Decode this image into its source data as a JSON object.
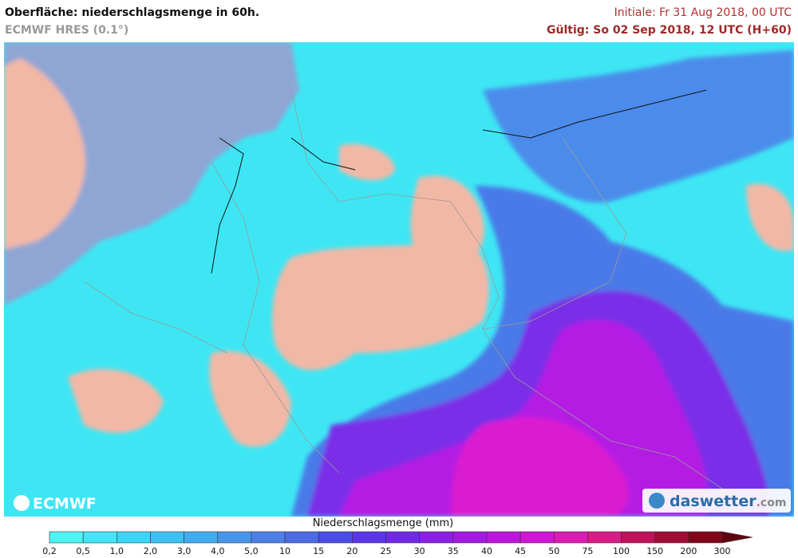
{
  "header": {
    "title": "Oberfläche: niederschlagsmenge in 60h.",
    "subtitle": "ECMWF HRES (0.1°)",
    "initial": "Initiale: Fr 31 Aug 2018, 00 UTC",
    "valid": "Gültig: So 02 Sep 2018, 12 UTC (H+60)"
  },
  "logos": {
    "left": "ECMWF",
    "right_name": "daswetter",
    "right_suffix": ".com"
  },
  "legend": {
    "title": "Niederschlagsmenge (mm)",
    "ticks": [
      "0,2",
      "0,5",
      "1,0",
      "2,0",
      "3,0",
      "4,0",
      "5,0",
      "10",
      "15",
      "20",
      "25",
      "30",
      "35",
      "40",
      "45",
      "50",
      "75",
      "100",
      "150",
      "200",
      "300"
    ],
    "colors": [
      "#4ef4f4",
      "#42e6f6",
      "#3ad6f6",
      "#3cc2f2",
      "#42acee",
      "#4896ea",
      "#4c80e6",
      "#4e6ae4",
      "#4a4ce8",
      "#5a36e8",
      "#7028e8",
      "#8a20e6",
      "#a41ae4",
      "#bc16de",
      "#d016d2",
      "#de1ab4",
      "#dc1a86",
      "#c0125a",
      "#a00c34",
      "#7e0818"
    ],
    "arrow_color": "#600010"
  }
}
